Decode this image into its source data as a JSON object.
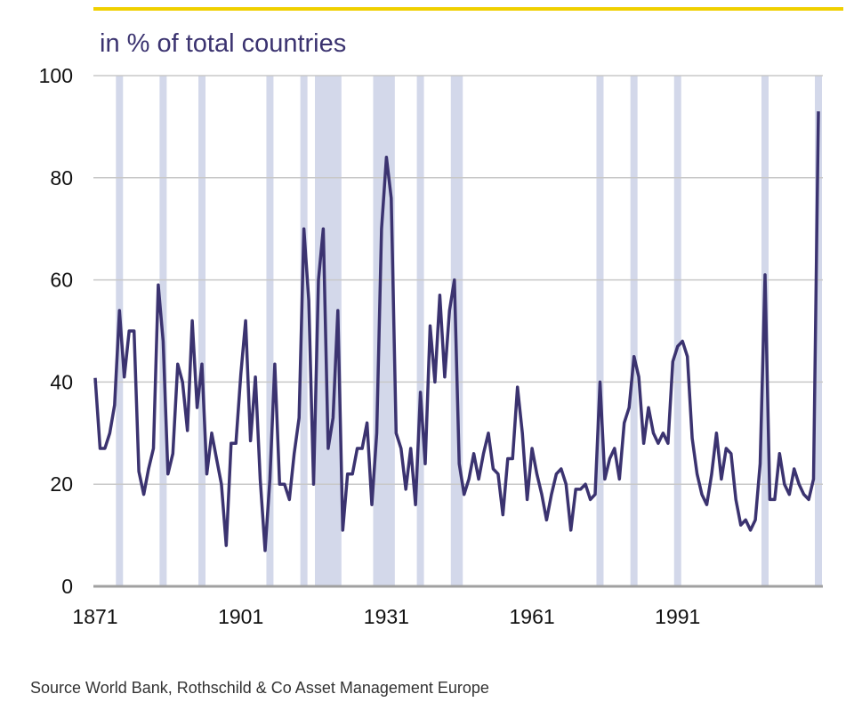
{
  "chart_data": {
    "type": "line",
    "title": "in % of total countries",
    "source": "Source World Bank, Rothschild & Co Asset Management Europe",
    "xlabel": "",
    "ylabel": "",
    "x_range": [
      1871,
      2020
    ],
    "ylim": [
      0,
      100
    ],
    "yticks": [
      0,
      20,
      40,
      60,
      80,
      100
    ],
    "xticks": [
      1871,
      1901,
      1931,
      1961,
      1991
    ],
    "grid": "horizontal",
    "line_color": "#3b3370",
    "band_color": "#d3d8ea",
    "accent_color": "#f0d000",
    "recession_bands": [
      [
        1876,
        1876
      ],
      [
        1885,
        1885
      ],
      [
        1893,
        1893
      ],
      [
        1907,
        1907
      ],
      [
        1914,
        1914
      ],
      [
        1917,
        1921
      ],
      [
        1929,
        1932
      ],
      [
        1938,
        1938
      ],
      [
        1945,
        1946
      ],
      [
        1975,
        1975
      ],
      [
        1982,
        1982
      ],
      [
        1991,
        1991
      ],
      [
        2009,
        2009
      ],
      [
        2020,
        2020
      ]
    ],
    "series": [
      {
        "values": [
          40.8,
          27,
          27,
          30,
          35.5,
          54,
          41,
          50,
          50,
          22.5,
          18,
          23,
          27,
          59,
          48,
          22,
          26,
          43.5,
          40,
          30.5,
          52,
          35,
          43.5,
          22,
          30,
          25,
          20,
          8,
          28,
          28,
          41.5,
          52,
          28.5,
          41,
          21,
          7,
          21,
          43.5,
          20,
          20,
          17,
          26,
          33,
          70,
          56,
          20,
          60,
          70,
          27,
          33,
          54,
          11,
          22,
          22,
          27,
          27,
          32,
          16,
          30,
          70,
          84,
          76,
          30,
          27,
          19,
          27,
          16,
          38,
          24,
          51,
          40,
          57,
          41,
          54,
          60,
          24,
          18,
          21,
          26,
          21,
          26,
          30,
          23,
          22,
          14,
          25,
          25,
          39,
          30,
          17,
          27,
          22,
          18,
          13,
          18,
          22,
          23,
          20,
          11,
          19,
          19,
          20,
          17,
          18,
          40,
          21,
          25,
          27,
          21,
          32,
          35,
          45,
          41,
          28,
          35,
          30,
          28,
          30,
          28,
          44,
          47,
          48,
          45,
          29,
          22,
          18,
          16,
          22,
          30,
          21,
          27,
          26,
          17,
          12,
          13,
          11,
          13,
          24,
          61,
          17,
          17,
          26,
          20,
          18,
          23,
          20,
          18,
          17,
          21,
          93
        ]
      }
    ]
  }
}
